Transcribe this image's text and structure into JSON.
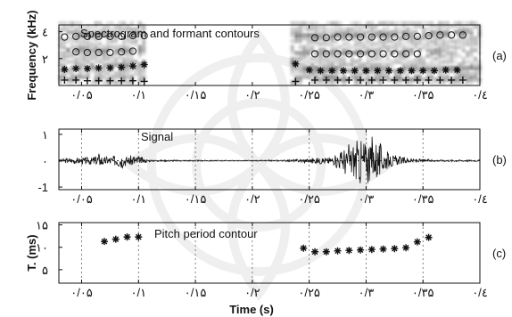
{
  "chart_data": [
    {
      "id": "a",
      "type": "heatmap",
      "panel_label": "(a)",
      "title": "Spectrogram and formant contours",
      "ylabel": "Frequency (kHz)",
      "ylim": [
        0,
        4.5
      ],
      "xlim": [
        0.03,
        0.4
      ],
      "yticks": [
        {
          "v": 2,
          "t": "۲"
        },
        {
          "v": 4,
          "t": "٤"
        }
      ],
      "xticks": [
        {
          "v": 0.05,
          "t": "۰/۰۵"
        },
        {
          "v": 0.1,
          "t": "۰/۱"
        },
        {
          "v": 0.15,
          "t": "۰/۱۵"
        },
        {
          "v": 0.2,
          "t": "۰/۲"
        },
        {
          "v": 0.25,
          "t": "۰/۲۵"
        },
        {
          "v": 0.3,
          "t": "۰/۳"
        },
        {
          "v": 0.35,
          "t": "۰/۳۵"
        },
        {
          "v": 0.4,
          "t": "۰/٤"
        }
      ],
      "voiced_regions": [
        [
          0.03,
          0.107
        ],
        [
          0.234,
          0.4
        ]
      ],
      "formants": [
        {
          "name": "F1",
          "marker": "+",
          "points": [
            [
              0.035,
              0.4
            ],
            [
              0.045,
              0.4
            ],
            [
              0.055,
              0.35
            ],
            [
              0.065,
              0.35
            ],
            [
              0.075,
              0.35
            ],
            [
              0.085,
              0.35
            ],
            [
              0.095,
              0.35
            ],
            [
              0.105,
              0.3
            ],
            [
              0.238,
              0.3
            ],
            [
              0.255,
              0.4
            ],
            [
              0.265,
              0.4
            ],
            [
              0.275,
              0.4
            ],
            [
              0.285,
              0.4
            ],
            [
              0.295,
              0.4
            ],
            [
              0.305,
              0.4
            ],
            [
              0.315,
              0.4
            ],
            [
              0.325,
              0.4
            ],
            [
              0.335,
              0.4
            ],
            [
              0.345,
              0.4
            ],
            [
              0.355,
              0.4
            ],
            [
              0.365,
              0.4
            ],
            [
              0.375,
              0.4
            ],
            [
              0.385,
              0.4
            ]
          ]
        },
        {
          "name": "F2",
          "marker": "*",
          "points": [
            [
              0.035,
              1.2
            ],
            [
              0.045,
              1.25
            ],
            [
              0.055,
              1.25
            ],
            [
              0.065,
              1.3
            ],
            [
              0.075,
              1.3
            ],
            [
              0.085,
              1.35
            ],
            [
              0.095,
              1.45
            ],
            [
              0.105,
              1.55
            ],
            [
              0.238,
              1.6
            ],
            [
              0.25,
              1.15
            ],
            [
              0.26,
              1.1
            ],
            [
              0.27,
              1.1
            ],
            [
              0.28,
              1.1
            ],
            [
              0.29,
              1.1
            ],
            [
              0.3,
              1.1
            ],
            [
              0.31,
              1.1
            ],
            [
              0.32,
              1.1
            ],
            [
              0.33,
              1.1
            ],
            [
              0.34,
              1.1
            ],
            [
              0.35,
              1.1
            ],
            [
              0.36,
              1.1
            ],
            [
              0.37,
              1.15
            ],
            [
              0.38,
              1.15
            ]
          ]
        },
        {
          "name": "F3",
          "marker": "o",
          "points": [
            [
              0.045,
              2.5
            ],
            [
              0.055,
              2.45
            ],
            [
              0.065,
              2.45
            ],
            [
              0.075,
              2.45
            ],
            [
              0.085,
              2.5
            ],
            [
              0.095,
              2.55
            ],
            [
              0.255,
              2.35
            ],
            [
              0.265,
              2.35
            ],
            [
              0.275,
              2.35
            ],
            [
              0.285,
              2.35
            ],
            [
              0.295,
              2.35
            ],
            [
              0.305,
              2.35
            ],
            [
              0.315,
              2.35
            ],
            [
              0.325,
              2.35
            ],
            [
              0.335,
              2.35
            ],
            [
              0.345,
              2.35
            ]
          ]
        },
        {
          "name": "F4",
          "marker": "o",
          "points": [
            [
              0.035,
              3.6
            ],
            [
              0.045,
              3.65
            ],
            [
              0.055,
              3.65
            ],
            [
              0.065,
              3.65
            ],
            [
              0.075,
              3.65
            ],
            [
              0.085,
              3.65
            ],
            [
              0.095,
              3.7
            ],
            [
              0.105,
              3.7
            ],
            [
              0.255,
              3.55
            ],
            [
              0.265,
              3.55
            ],
            [
              0.275,
              3.6
            ],
            [
              0.285,
              3.6
            ],
            [
              0.295,
              3.6
            ],
            [
              0.305,
              3.6
            ],
            [
              0.315,
              3.6
            ],
            [
              0.325,
              3.6
            ],
            [
              0.335,
              3.65
            ],
            [
              0.345,
              3.65
            ],
            [
              0.355,
              3.7
            ],
            [
              0.365,
              3.75
            ],
            [
              0.375,
              3.75
            ],
            [
              0.385,
              3.75
            ]
          ]
        }
      ]
    },
    {
      "id": "b",
      "type": "line",
      "panel_label": "(b)",
      "title": "Signal",
      "ylim": [
        -1.1,
        1.2
      ],
      "xlim": [
        0.03,
        0.4
      ],
      "yticks": [
        {
          "v": -1,
          "t": "-1"
        },
        {
          "v": 0,
          "t": "۰"
        },
        {
          "v": 1,
          "t": "۱"
        }
      ],
      "xticks": [
        {
          "v": 0.05,
          "t": "۰/۰۵"
        },
        {
          "v": 0.1,
          "t": "۰/۱"
        },
        {
          "v": 0.15,
          "t": "۰/۱۵"
        },
        {
          "v": 0.2,
          "t": "۰/۲"
        },
        {
          "v": 0.25,
          "t": "۰/۲۵"
        },
        {
          "v": 0.3,
          "t": "۰/۳"
        },
        {
          "v": 0.35,
          "t": "۰/۳۵"
        },
        {
          "v": 0.4,
          "t": "۰/٤"
        }
      ],
      "grid": "vertical-dashed",
      "envelope": [
        [
          0.03,
          0.05
        ],
        [
          0.04,
          0.1
        ],
        [
          0.05,
          0.12
        ],
        [
          0.06,
          0.15
        ],
        [
          0.065,
          0.35
        ],
        [
          0.07,
          0.15
        ],
        [
          0.08,
          0.2
        ],
        [
          0.085,
          0.3
        ],
        [
          0.09,
          0.15
        ],
        [
          0.095,
          0.25
        ],
        [
          0.1,
          0.2
        ],
        [
          0.105,
          0.08
        ],
        [
          0.11,
          0.02
        ],
        [
          0.2,
          0.0
        ],
        [
          0.23,
          0.02
        ],
        [
          0.24,
          0.05
        ],
        [
          0.25,
          0.1
        ],
        [
          0.26,
          0.12
        ],
        [
          0.27,
          0.15
        ],
        [
          0.275,
          0.3
        ],
        [
          0.28,
          0.5
        ],
        [
          0.285,
          0.7
        ],
        [
          0.29,
          0.85
        ],
        [
          0.295,
          0.95
        ],
        [
          0.3,
          0.9
        ],
        [
          0.305,
          1.0
        ],
        [
          0.31,
          0.8
        ],
        [
          0.315,
          0.55
        ],
        [
          0.32,
          0.3
        ],
        [
          0.33,
          0.15
        ],
        [
          0.34,
          0.08
        ],
        [
          0.35,
          0.05
        ],
        [
          0.36,
          0.03
        ],
        [
          0.4,
          0.02
        ]
      ]
    },
    {
      "id": "c",
      "type": "scatter",
      "panel_label": "(c)",
      "title": "Pitch period contour",
      "ylabel": "T. (ms)",
      "xlabel": "Time (s)",
      "ylim": [
        2,
        15.5
      ],
      "xlim": [
        0.03,
        0.4
      ],
      "yticks": [
        {
          "v": 5,
          "t": "۵"
        },
        {
          "v": 10,
          "t": "۱۰"
        },
        {
          "v": 15,
          "t": "۱۵"
        }
      ],
      "xticks": [
        {
          "v": 0.05,
          "t": "۰/۰۵"
        },
        {
          "v": 0.1,
          "t": "۰/۱"
        },
        {
          "v": 0.15,
          "t": "۰/۱۵"
        },
        {
          "v": 0.2,
          "t": "۰/۲"
        },
        {
          "v": 0.25,
          "t": "۰/۲۵"
        },
        {
          "v": 0.3,
          "t": "۰/۳"
        },
        {
          "v": 0.35,
          "t": "۰/۳۵"
        },
        {
          "v": 0.4,
          "t": "۰/٤"
        }
      ],
      "grid": "vertical-dashed",
      "marker": "*",
      "points": [
        [
          0.07,
          11.3
        ],
        [
          0.08,
          11.8
        ],
        [
          0.09,
          12.3
        ],
        [
          0.1,
          12.3
        ],
        [
          0.245,
          9.8
        ],
        [
          0.255,
          9.0
        ],
        [
          0.265,
          9.0
        ],
        [
          0.275,
          9.2
        ],
        [
          0.285,
          9.3
        ],
        [
          0.295,
          9.4
        ],
        [
          0.305,
          9.5
        ],
        [
          0.315,
          9.6
        ],
        [
          0.325,
          9.7
        ],
        [
          0.335,
          9.9
        ],
        [
          0.345,
          11.2
        ],
        [
          0.355,
          12.2
        ]
      ]
    }
  ]
}
